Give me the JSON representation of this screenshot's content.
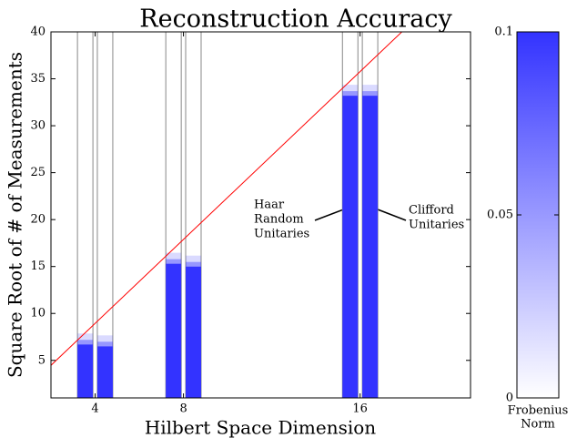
{
  "chart_data": {
    "type": "bar",
    "title": "Reconstruction Accuracy",
    "xlabel": "Hilbert Space Dimension",
    "ylabel": "Square Root of # of Measurements",
    "x": [
      4,
      8,
      16
    ],
    "series": [
      {
        "color": "#3333ff",
        "values": [
          6.7,
          15.3,
          33.2
        ]
      },
      {
        "color": "#3333ff",
        "values": [
          6.5,
          15.0,
          33.2
        ]
      }
    ],
    "line": {
      "color": "#ff0000",
      "x": [
        2,
        17.89
      ],
      "y": [
        4.47,
        40
      ]
    },
    "xlim": [
      2,
      21
    ],
    "xticks": [
      4,
      8,
      16
    ],
    "ylim": [
      1,
      40
    ],
    "yticks": [
      5,
      10,
      15,
      20,
      25,
      30,
      35,
      40
    ],
    "annotations": [
      {
        "lines": [
          "Haar",
          "Random",
          "Unitaries"
        ]
      },
      {
        "lines": [
          "Clifford",
          "Unitaries"
        ]
      }
    ],
    "colorbar": {
      "lim": [
        0,
        0.1
      ],
      "ticks": [
        0,
        0.05,
        0.1
      ],
      "label_lines": [
        "Frobenius",
        "Norm"
      ],
      "color": "#3333ff"
    }
  }
}
